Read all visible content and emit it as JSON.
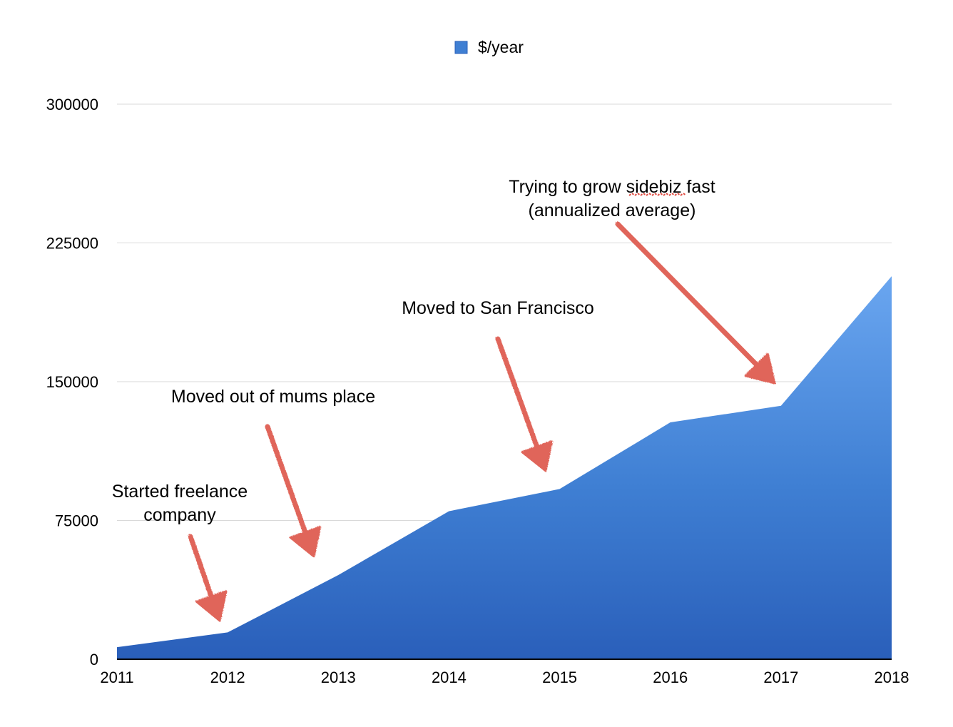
{
  "chart_data": {
    "type": "area",
    "x": [
      "2011",
      "2012",
      "2013",
      "2014",
      "2015",
      "2016",
      "2017",
      "2018"
    ],
    "series": [
      {
        "name": "$/year",
        "values": [
          6500,
          14500,
          45500,
          80000,
          92000,
          128000,
          137000,
          207000
        ]
      }
    ],
    "ylim": [
      0,
      300000
    ],
    "yticks": [
      "0",
      "75000",
      "150000",
      "225000",
      "300000"
    ],
    "grid": true,
    "legend": "top-center",
    "colors": {
      "area_top": "#6aa6f0",
      "area_mid": "#3f7fd3",
      "area_bottom": "#2a5fba",
      "arrow": "#e0655a",
      "grid": "#d9d9d9"
    },
    "annotations": [
      {
        "lines": [
          "Started freelance",
          "company"
        ],
        "points_to": "2012"
      },
      {
        "lines": [
          "Moved out of mums place"
        ],
        "points_to": "2013"
      },
      {
        "lines": [
          "Moved to San Francisco"
        ],
        "points_to": "2015"
      },
      {
        "lines": [
          "Trying to grow sidebiz fast",
          "(annualized average)"
        ],
        "points_to": "2017"
      }
    ]
  }
}
